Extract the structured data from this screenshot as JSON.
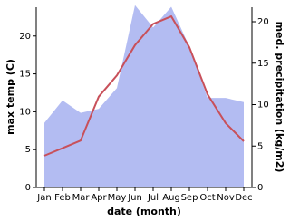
{
  "chart_data": {
    "type": "area-line",
    "x_label": "date (month)",
    "y_label": "max temp (C)",
    "y2_label": "med. precipitation (kg/m2)",
    "categories": [
      "Jan",
      "Feb",
      "Mar",
      "Apr",
      "May",
      "Jun",
      "Jul",
      "Aug",
      "Sep",
      "Oct",
      "Nov",
      "Dec"
    ],
    "series": [
      {
        "type": "line",
        "color": "#c8505a",
        "values": [
          4.2,
          5.2,
          6.2,
          12.0,
          14.8,
          18.8,
          21.6,
          22.6,
          18.5,
          12.3,
          8.5,
          6.1
        ]
      },
      {
        "type": "area",
        "axis": "y2",
        "color": "#b3bcf2",
        "values": [
          7.8,
          10.5,
          9.0,
          9.5,
          12.0,
          22.0,
          19.3,
          21.8,
          17.0,
          10.8,
          10.8,
          10.3
        ]
      }
    ],
    "ylim": [
      0,
      23.8
    ],
    "yticks": [
      0,
      5,
      10,
      15,
      20
    ],
    "y2lim": [
      0,
      21.75
    ],
    "y2ticks": [
      0,
      5,
      10,
      15,
      20
    ]
  }
}
